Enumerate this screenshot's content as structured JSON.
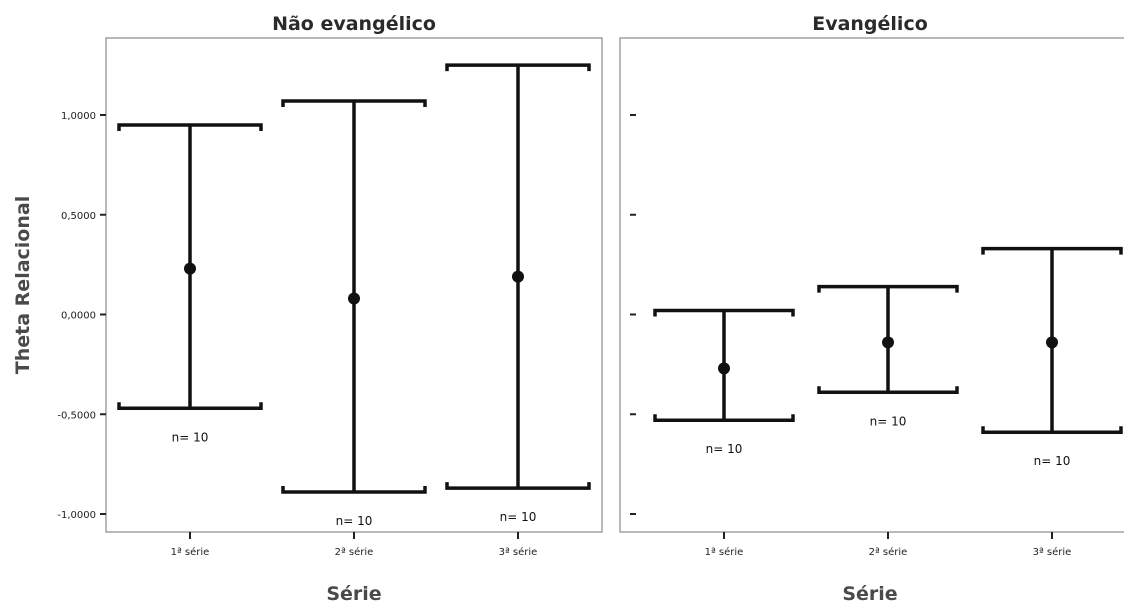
{
  "chart_data": {
    "type": "errorbar",
    "ylabel": "Theta Relacional",
    "ylim": [
      -1.0,
      1.0
    ],
    "y_ticks": [
      1.0,
      0.5,
      0.0,
      -0.5,
      -1.0
    ],
    "y_tick_labels": [
      "1,0000",
      "0,5000",
      "0,0000",
      "-0,5000",
      "-1,0000"
    ],
    "panels": [
      {
        "title": "Não evangélico",
        "xlabel": "Série",
        "categories": [
          "1ª série",
          "2ª série",
          "3ª série"
        ],
        "mean": [
          0.23,
          0.08,
          0.19
        ],
        "lower": [
          -0.47,
          -0.89,
          -0.87
        ],
        "upper": [
          0.95,
          1.07,
          1.25
        ],
        "n_labels": [
          "n= 10",
          "n= 10",
          "n= 10"
        ]
      },
      {
        "title": "Evangélico",
        "xlabel": "Série",
        "categories": [
          "1ª série",
          "2ª série",
          "3ª série"
        ],
        "mean": [
          -0.27,
          -0.14,
          -0.14
        ],
        "lower": [
          -0.53,
          -0.39,
          -0.59
        ],
        "upper": [
          0.02,
          0.14,
          0.33
        ],
        "n_labels": [
          "n= 10",
          "n= 10",
          "n= 10"
        ]
      }
    ]
  }
}
